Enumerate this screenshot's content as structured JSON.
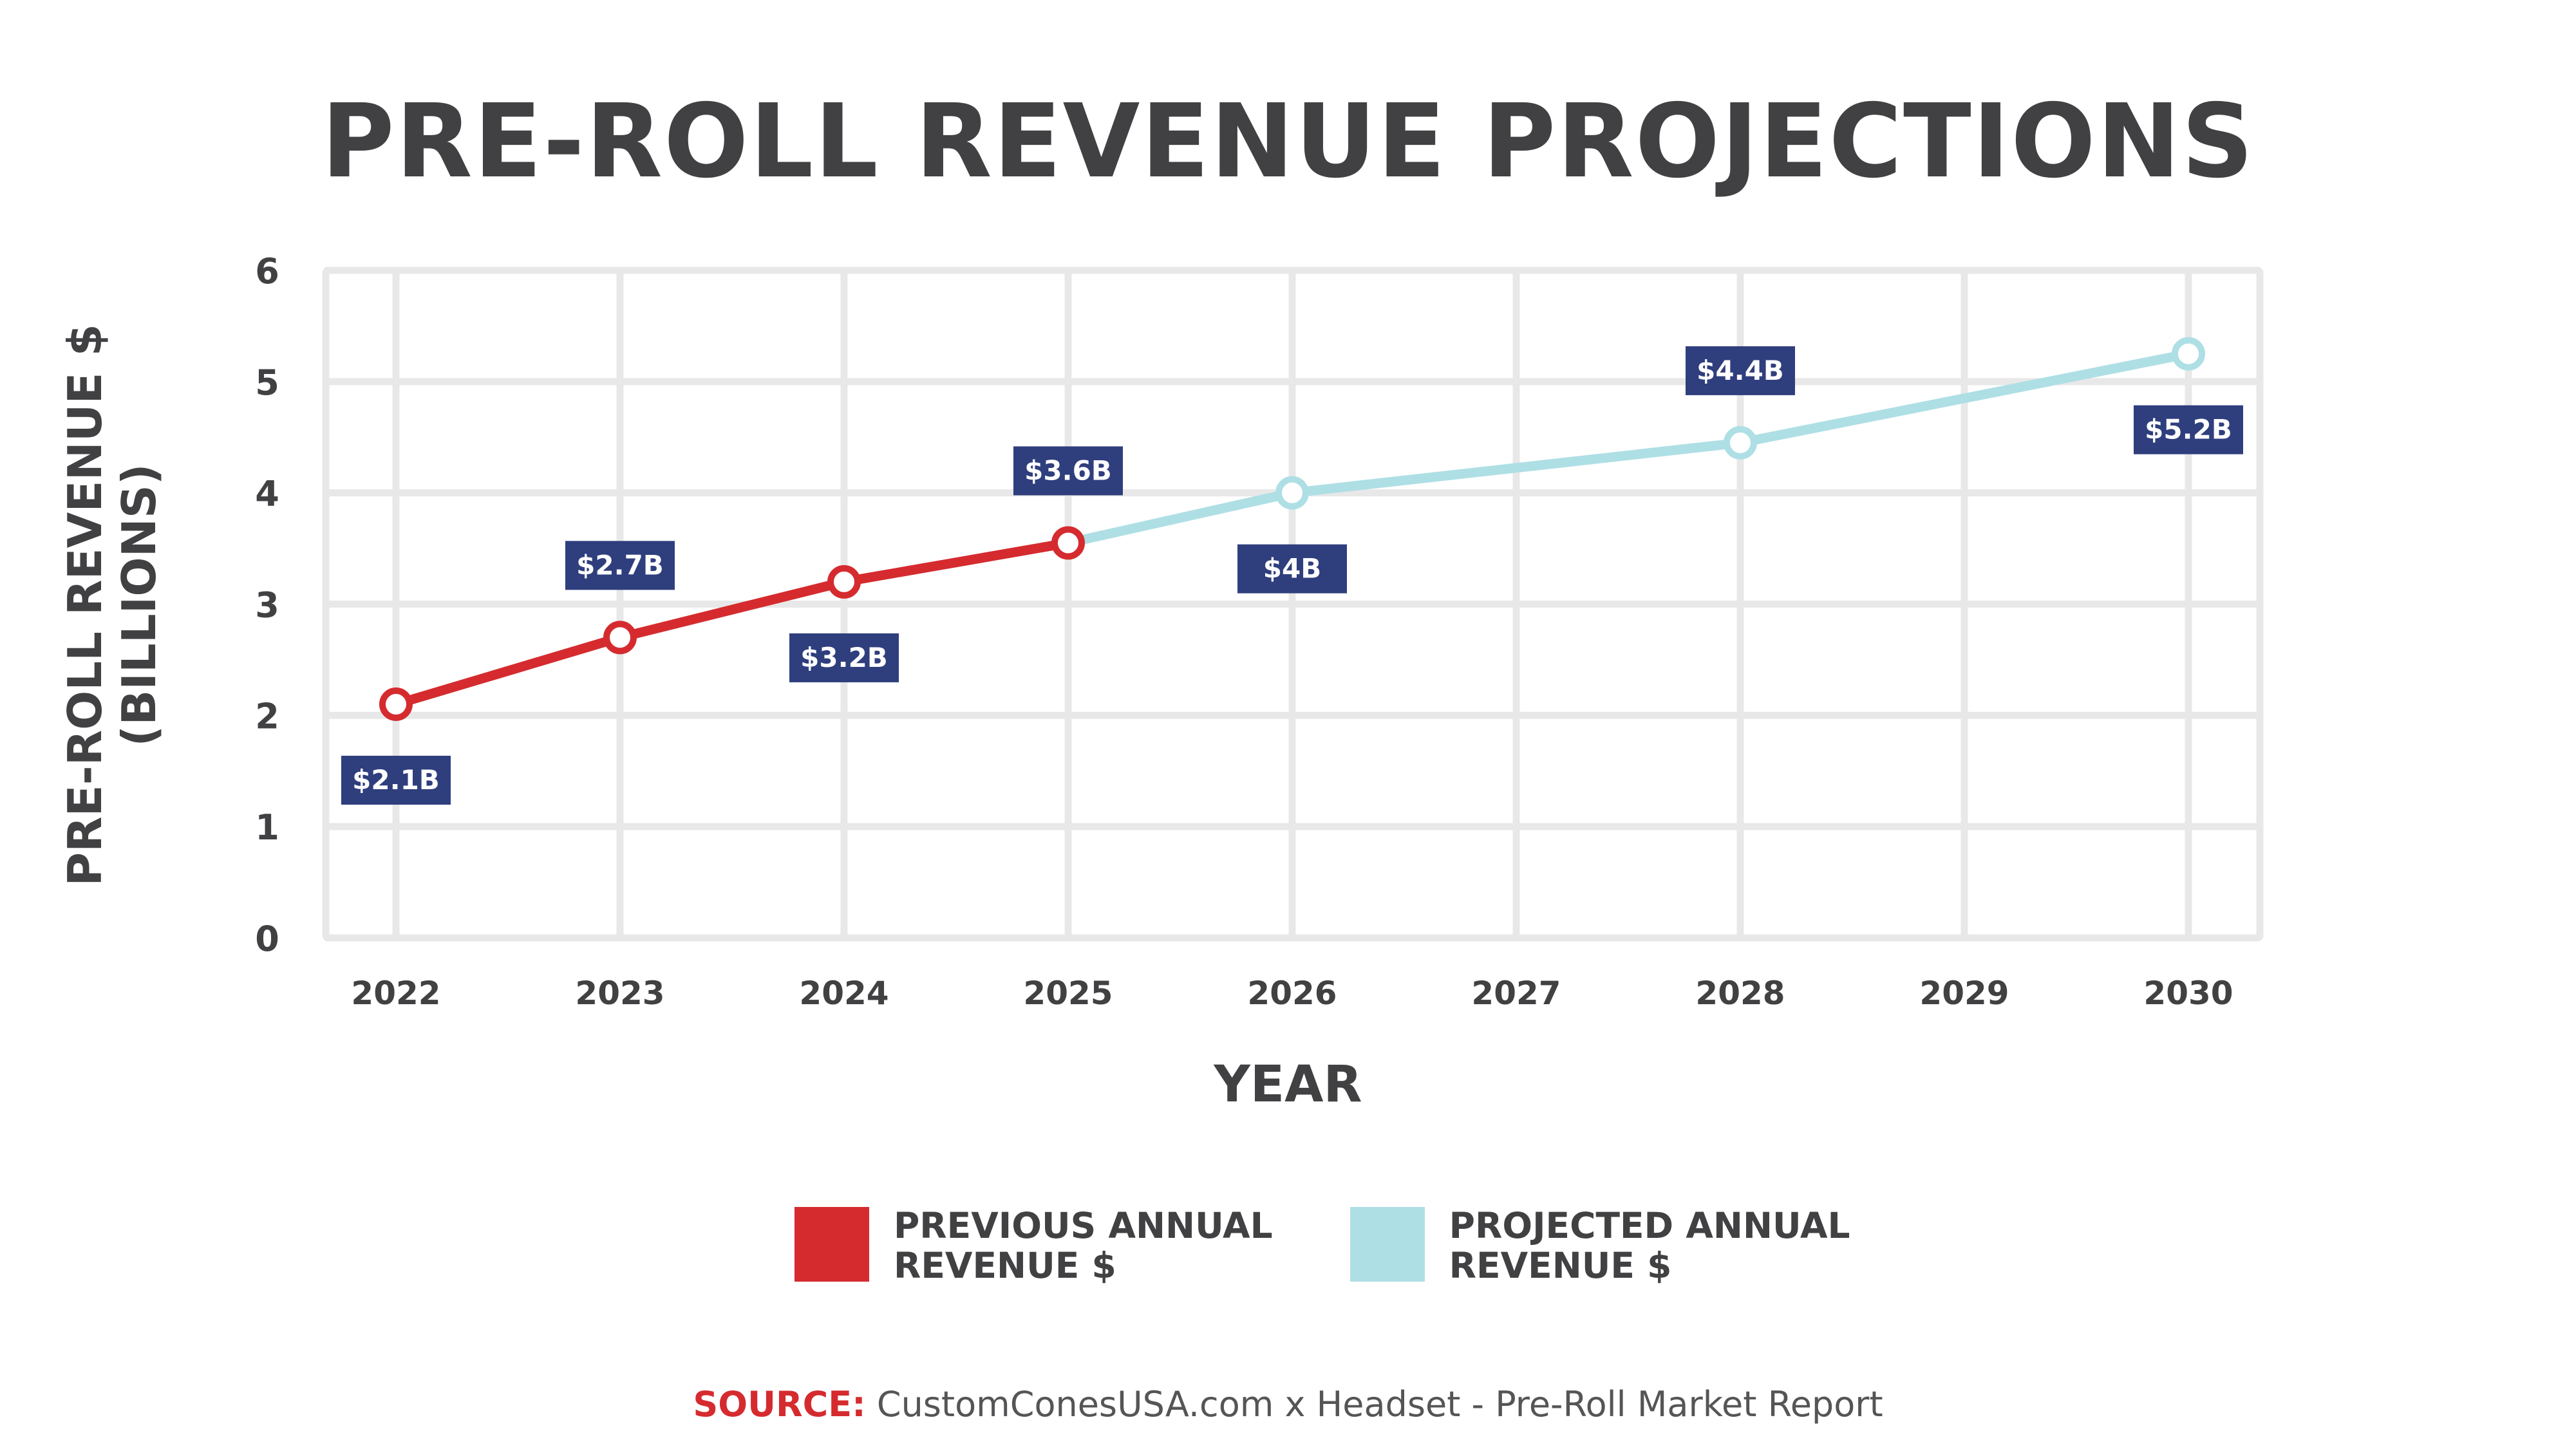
{
  "title": "PRE-ROLL REVENUE PROJECTIONS",
  "colors": {
    "previous": "#d52b2f",
    "projected": "#aedfe5",
    "label_bg": "#2f3e7d",
    "grid": "#e8e8e8",
    "text": "#414143"
  },
  "legend": [
    {
      "label": "PREVIOUS ANNUAL\nREVENUE $",
      "color": "#d52b2f"
    },
    {
      "label": "PROJECTED ANNUAL\nREVENUE $",
      "color": "#aedfe5"
    }
  ],
  "source": {
    "key": "SOURCE:",
    "text": " CustomConesUSA.com x Headset - Pre-Roll Market Report"
  },
  "chart_data": {
    "type": "line",
    "title": "PRE-ROLL REVENUE PROJECTIONS",
    "xlabel": "YEAR",
    "ylabel_lines": [
      "PRE-ROLL REVENUE $",
      "(BILLIONS)"
    ],
    "ylabel": "PRE-ROLL REVENUE $ (BILLIONS)",
    "x_ticks": [
      "2022",
      "2023",
      "2024",
      "2025",
      "2026",
      "2027",
      "2028",
      "2029",
      "2030"
    ],
    "y_ticks": [
      0,
      1,
      2,
      3,
      4,
      5,
      6
    ],
    "ylim": [
      0,
      6
    ],
    "grid": true,
    "legend_position": "bottom",
    "series": [
      {
        "name": "PREVIOUS ANNUAL REVENUE $",
        "color": "#d52b2f",
        "points": [
          {
            "x": "2022",
            "y": 2.1,
            "label": "$2.1B",
            "label_pos": "below"
          },
          {
            "x": "2023",
            "y": 2.7,
            "label": "$2.7B",
            "label_pos": "above"
          },
          {
            "x": "2024",
            "y": 3.2,
            "label": "$3.2B",
            "label_pos": "below"
          },
          {
            "x": "2025",
            "y": 3.55,
            "label": "$3.6B",
            "label_pos": "above"
          }
        ]
      },
      {
        "name": "PROJECTED ANNUAL REVENUE $",
        "color": "#aedfe5",
        "points": [
          {
            "x": "2025",
            "y": 3.55,
            "label": null
          },
          {
            "x": "2026",
            "y": 4.0,
            "label": "$4B",
            "label_pos": "below"
          },
          {
            "x": "2028",
            "y": 4.45,
            "label": "$4.4B",
            "label_pos": "above"
          },
          {
            "x": "2030",
            "y": 5.25,
            "label": "$5.2B",
            "label_pos": "below"
          }
        ]
      }
    ]
  }
}
